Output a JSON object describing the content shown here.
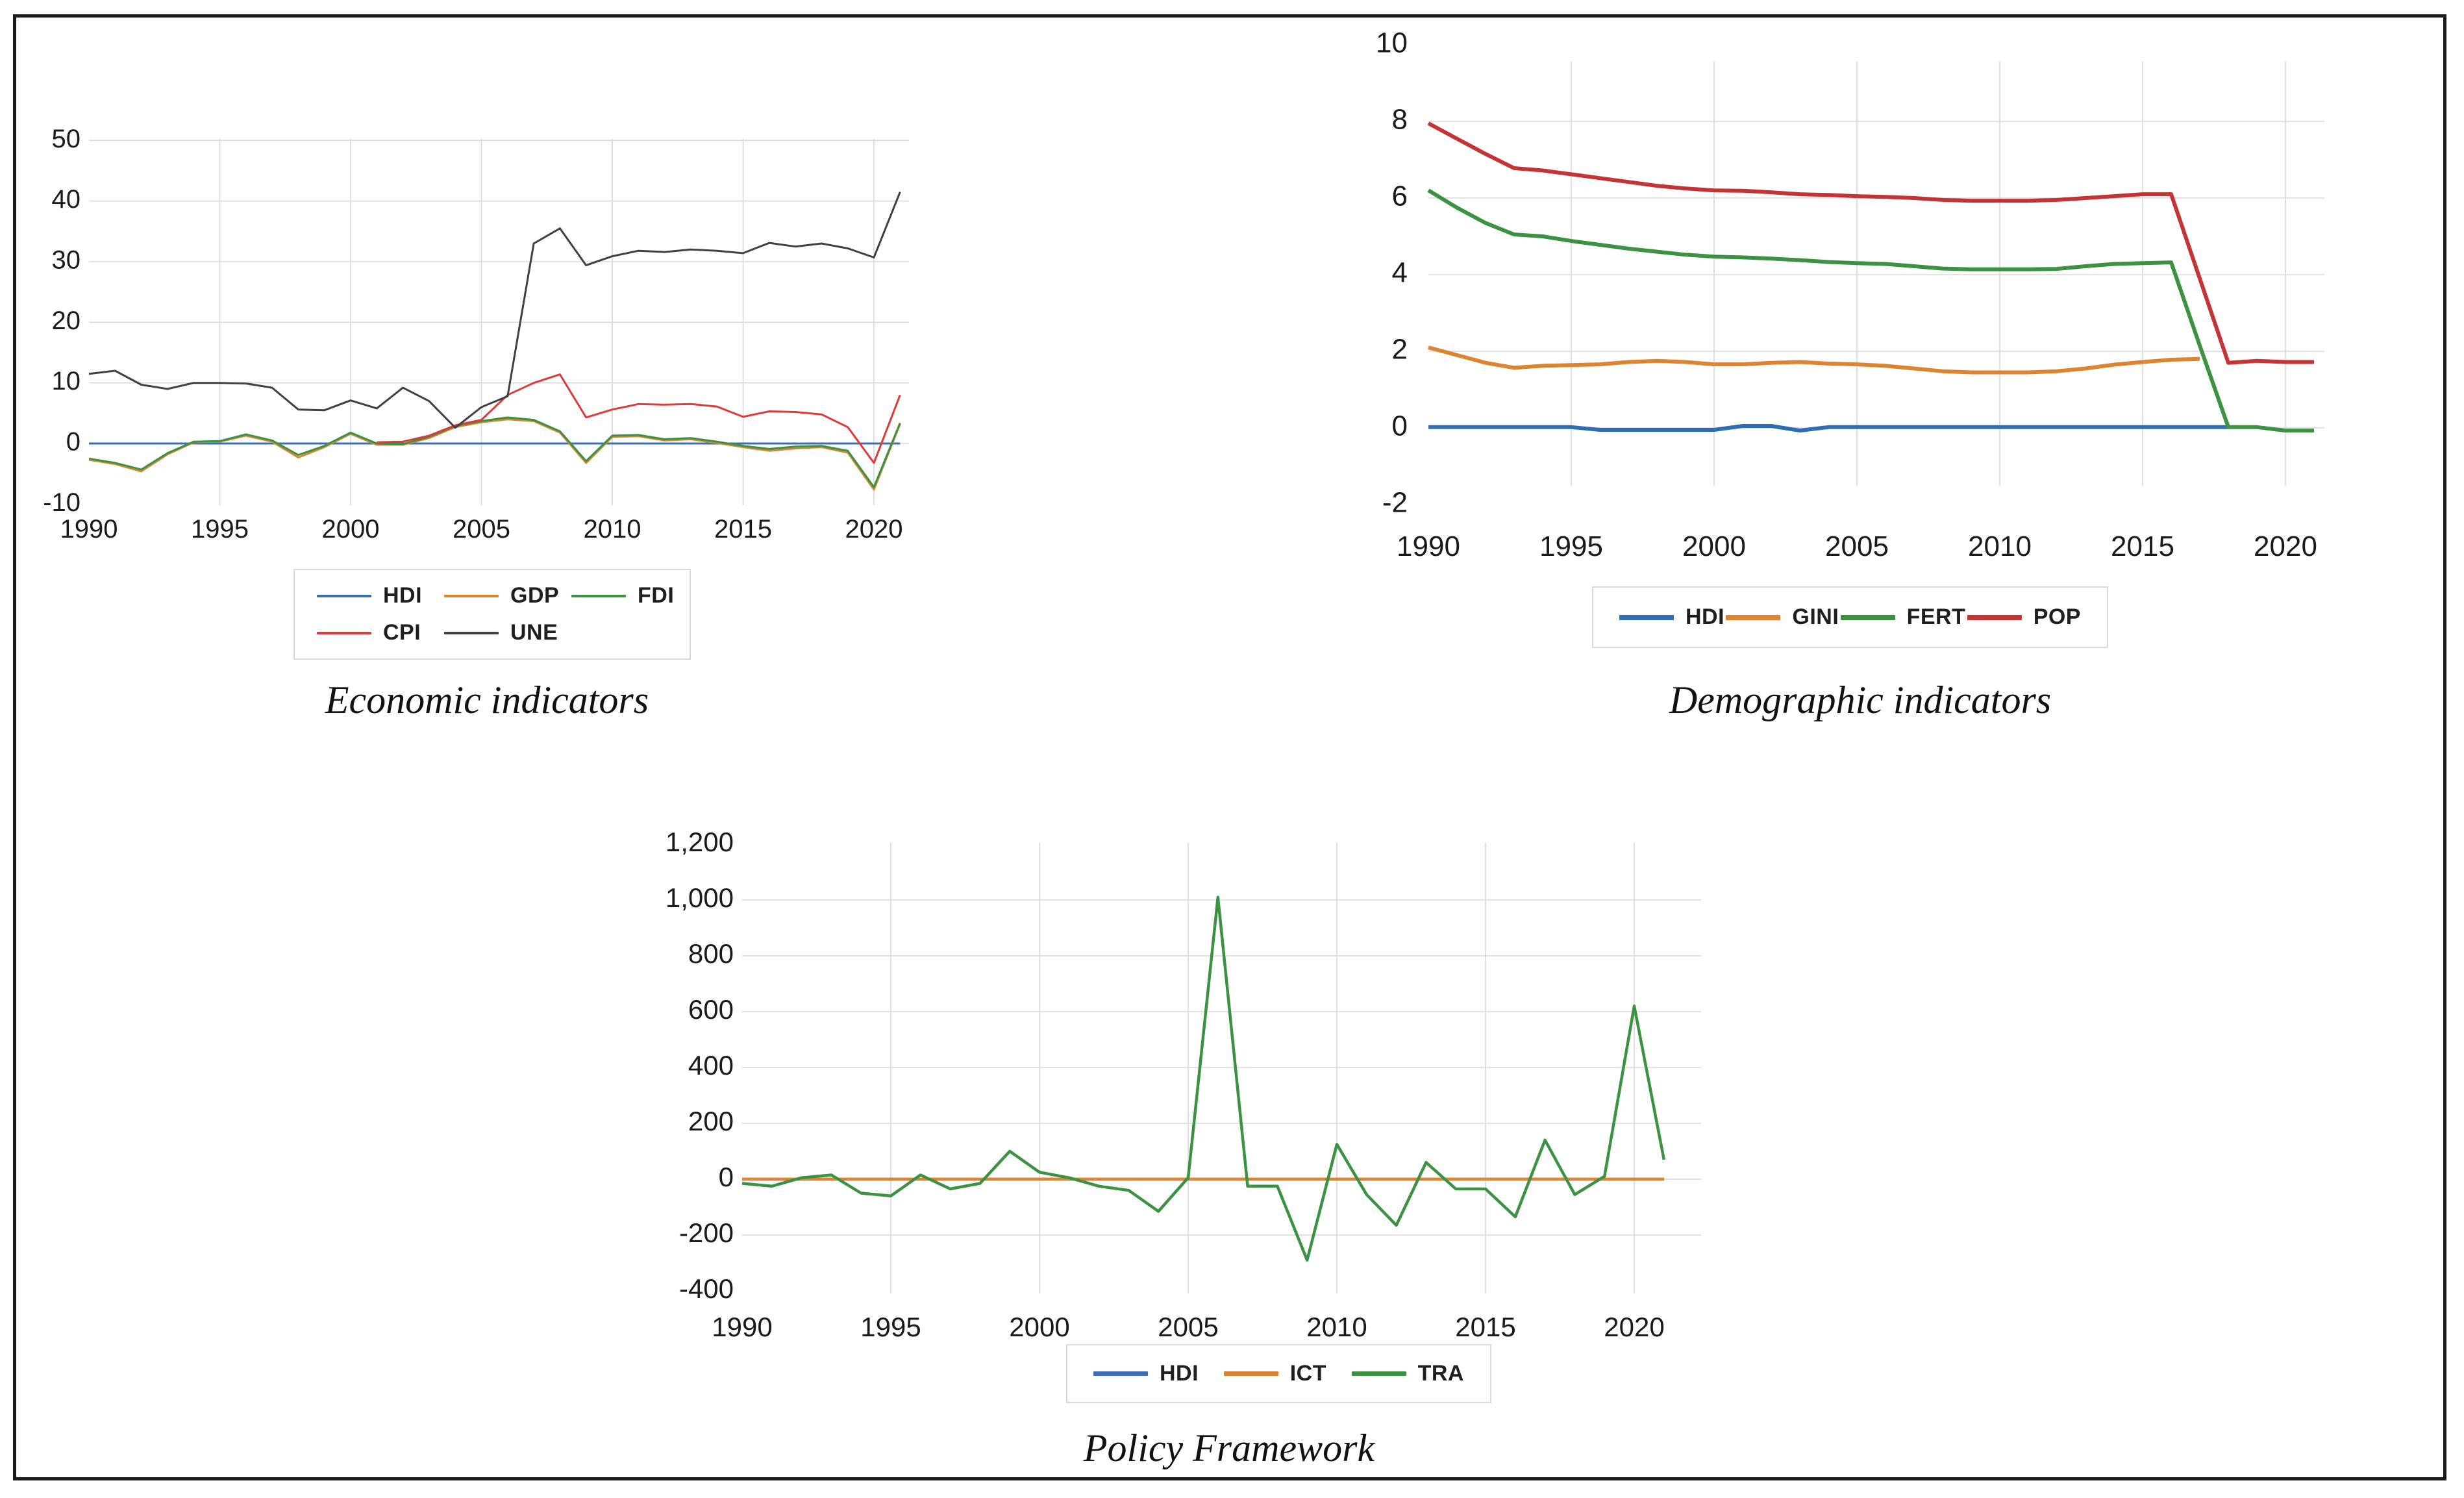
{
  "figure": {
    "background": "#ffffff",
    "frame_color": "#1b1b1b",
    "gridline_color": "#D9D9D9",
    "tick_text_color": "#1a1a1a"
  },
  "chart_data": [
    {
      "id": "economic",
      "type": "line",
      "title": "Economic indicators",
      "xlabel": "",
      "ylabel": "",
      "xlim": [
        1990,
        2021.5
      ],
      "ylim": [
        -10,
        50
      ],
      "grid": true,
      "legend_position": "bottom",
      "x_ticks": [
        {
          "label": "1990",
          "value": 1990
        },
        {
          "label": "1995",
          "value": 1995
        },
        {
          "label": "2000",
          "value": 2000
        },
        {
          "label": "2005",
          "value": 2005
        },
        {
          "label": "2010",
          "value": 2010
        },
        {
          "label": "2015",
          "value": 2015
        },
        {
          "label": "2020",
          "value": 2020
        }
      ],
      "y_ticks": [
        {
          "label": "50",
          "value": 50
        },
        {
          "label": "40",
          "value": 40
        },
        {
          "label": "30",
          "value": 30
        },
        {
          "label": "20",
          "value": 20
        },
        {
          "label": "10",
          "value": 10
        },
        {
          "label": "0",
          "value": 0
        },
        {
          "label": "-10",
          "value": -10
        }
      ],
      "grid_x": [
        1995,
        2000,
        2005,
        2010,
        2015,
        2020
      ],
      "grid_y": [
        0,
        10,
        20,
        30,
        40,
        50
      ],
      "years": [
        1990,
        1991,
        1992,
        1993,
        1994,
        1995,
        1996,
        1997,
        1998,
        1999,
        2000,
        2001,
        2002,
        2003,
        2004,
        2005,
        2006,
        2007,
        2008,
        2009,
        2010,
        2011,
        2012,
        2013,
        2014,
        2015,
        2016,
        2017,
        2018,
        2019,
        2020,
        2021
      ],
      "series": [
        {
          "name": "HDI",
          "color": "#3D6EB5",
          "values": [
            0,
            0,
            0,
            0,
            0,
            0,
            0,
            0,
            0,
            0,
            0,
            0,
            0,
            0,
            0,
            0,
            0,
            0,
            0,
            0,
            0,
            0,
            0,
            0,
            0,
            0,
            0,
            0,
            0,
            0,
            0,
            0
          ]
        },
        {
          "name": "GDP",
          "color": "#DD8433",
          "values": [
            -2.7,
            -3.4,
            -4.6,
            -1.8,
            0.2,
            0.3,
            1.3,
            0.3,
            -2.3,
            -0.6,
            1.6,
            -0.2,
            -0.2,
            0.9,
            2.7,
            3.5,
            4.0,
            3.7,
            1.8,
            -3.2,
            1.1,
            1.2,
            0.5,
            0.7,
            0.1,
            -0.6,
            -1.2,
            -0.8,
            -0.6,
            -1.5,
            -7.6,
            3.2
          ]
        },
        {
          "name": "FDI",
          "color": "#3D9142",
          "values": [
            -2.5,
            -3.2,
            -4.3,
            -1.6,
            0.3,
            0.4,
            1.5,
            0.5,
            -1.9,
            -0.4,
            1.8,
            0.0,
            -0.1,
            1.1,
            2.9,
            3.7,
            4.3,
            3.9,
            2.0,
            -2.9,
            1.3,
            1.4,
            0.7,
            0.9,
            0.3,
            -0.4,
            -0.9,
            -0.5,
            -0.4,
            -1.2,
            -7.2,
            3.4
          ]
        },
        {
          "name": "CPI",
          "color": "#DE393B",
          "values": [
            null,
            null,
            null,
            null,
            null,
            null,
            null,
            null,
            null,
            null,
            null,
            0.2,
            0.3,
            1.3,
            3.0,
            3.9,
            8.0,
            10.0,
            11.4,
            4.3,
            5.6,
            6.5,
            6.4,
            6.5,
            6.1,
            4.4,
            5.3,
            5.2,
            4.8,
            2.7,
            -3.2,
            8.0
          ]
        },
        {
          "name": "UNE",
          "color": "#404040",
          "values": [
            11.5,
            12.0,
            9.7,
            9.0,
            10.0,
            10.0,
            9.9,
            9.2,
            5.6,
            5.5,
            7.1,
            5.8,
            9.2,
            7.0,
            2.6,
            6.0,
            7.8,
            33.0,
            35.5,
            29.4,
            30.9,
            31.8,
            31.6,
            32.0,
            31.8,
            31.4,
            33.1,
            32.5,
            33.0,
            32.2,
            30.7,
            41.5
          ]
        }
      ],
      "legend_labels": [
        "HDI",
        "GDP",
        "FDI",
        "CPI",
        "UNE"
      ]
    },
    {
      "id": "demographic",
      "type": "line",
      "title": "Demographic indicators",
      "xlabel": "",
      "ylabel": "",
      "xlim": [
        1990,
        2021.5
      ],
      "ylim": [
        -2,
        10
      ],
      "grid": true,
      "legend_position": "bottom",
      "x_ticks": [
        {
          "label": "1990",
          "value": 1990
        },
        {
          "label": "1995",
          "value": 1995
        },
        {
          "label": "2000",
          "value": 2000
        },
        {
          "label": "2005",
          "value": 2005
        },
        {
          "label": "2010",
          "value": 2010
        },
        {
          "label": "2015",
          "value": 2015
        },
        {
          "label": "2020",
          "value": 2020
        }
      ],
      "y_ticks": [
        {
          "label": "10",
          "value": 10
        },
        {
          "label": "8",
          "value": 8
        },
        {
          "label": "6",
          "value": 6
        },
        {
          "label": "4",
          "value": 4
        },
        {
          "label": "2",
          "value": 2
        },
        {
          "label": "0",
          "value": 0
        },
        {
          "label": "-2",
          "value": -2
        }
      ],
      "grid_x": [
        1995,
        2000,
        2005,
        2010,
        2015,
        2020
      ],
      "grid_y": [
        0,
        2,
        4,
        6,
        8
      ],
      "years": [
        1990,
        1991,
        1992,
        1993,
        1994,
        1995,
        1996,
        1997,
        1998,
        1999,
        2000,
        2001,
        2002,
        2003,
        2004,
        2005,
        2006,
        2007,
        2008,
        2009,
        2010,
        2011,
        2012,
        2013,
        2014,
        2015,
        2016,
        2017,
        2018,
        2019,
        2020,
        2021
      ],
      "series": [
        {
          "name": "HDI",
          "color": "#2E6DB4",
          "values": [
            0.02,
            0.02,
            0.02,
            0.02,
            0.02,
            0.02,
            -0.05,
            -0.05,
            -0.05,
            -0.05,
            -0.05,
            0.05,
            0.05,
            -0.07,
            0.02,
            0.02,
            0.02,
            0.02,
            0.02,
            0.02,
            0.02,
            0.02,
            0.02,
            0.02,
            0.02,
            0.02,
            0.02,
            0.02,
            0.02,
            null,
            null,
            null
          ]
        },
        {
          "name": "GINI",
          "color": "#DD8433",
          "values": [
            2.1,
            1.9,
            1.7,
            1.57,
            1.62,
            1.64,
            1.66,
            1.72,
            1.75,
            1.72,
            1.66,
            1.66,
            1.7,
            1.72,
            1.68,
            1.66,
            1.62,
            1.55,
            1.48,
            1.45,
            1.45,
            1.45,
            1.48,
            1.55,
            1.65,
            1.72,
            1.78,
            1.8,
            null,
            null,
            null,
            null
          ]
        },
        {
          "name": "FERT",
          "color": "#3D9142",
          "values": [
            6.2,
            5.75,
            5.35,
            5.05,
            5.0,
            4.88,
            4.78,
            4.68,
            4.6,
            4.52,
            4.47,
            4.45,
            4.42,
            4.38,
            4.33,
            4.3,
            4.28,
            4.22,
            4.16,
            4.14,
            4.14,
            4.14,
            4.15,
            4.22,
            4.28,
            4.3,
            4.32,
            2.15,
            0.02,
            0.02,
            -0.07,
            -0.07
          ]
        },
        {
          "name": "POP",
          "color": "#C43434",
          "values": [
            7.95,
            7.55,
            7.15,
            6.78,
            6.72,
            6.62,
            6.52,
            6.42,
            6.32,
            6.25,
            6.2,
            6.19,
            6.15,
            6.1,
            6.08,
            6.05,
            6.03,
            6.0,
            5.95,
            5.93,
            5.93,
            5.93,
            5.95,
            6.0,
            6.05,
            6.1,
            6.1,
            3.9,
            1.7,
            1.75,
            1.72,
            1.72
          ]
        }
      ],
      "legend_labels": [
        "HDI",
        "GINI",
        "FERT",
        "POP"
      ]
    },
    {
      "id": "policy",
      "type": "line",
      "title": "Policy Framework",
      "xlabel": "",
      "ylabel": "",
      "xlim": [
        1990,
        2021.5
      ],
      "ylim": [
        -400,
        1200
      ],
      "grid": true,
      "legend_position": "bottom",
      "x_ticks": [
        {
          "label": "1990",
          "value": 1990
        },
        {
          "label": "1995",
          "value": 1995
        },
        {
          "label": "2000",
          "value": 2000
        },
        {
          "label": "2005",
          "value": 2005
        },
        {
          "label": "2010",
          "value": 2010
        },
        {
          "label": "2015",
          "value": 2015
        },
        {
          "label": "2020",
          "value": 2020
        }
      ],
      "y_ticks": [
        {
          "label": "1,200",
          "value": 1200
        },
        {
          "label": "1,000",
          "value": 1000
        },
        {
          "label": "800",
          "value": 800
        },
        {
          "label": "600",
          "value": 600
        },
        {
          "label": "400",
          "value": 400
        },
        {
          "label": "200",
          "value": 200
        },
        {
          "label": "0",
          "value": 0
        },
        {
          "label": "-200",
          "value": -200
        },
        {
          "label": "-400",
          "value": -400
        }
      ],
      "grid_x": [
        1995,
        2000,
        2005,
        2010,
        2015,
        2020
      ],
      "grid_y": [
        -200,
        0,
        200,
        400,
        600,
        800,
        1000
      ],
      "years": [
        1990,
        1991,
        1992,
        1993,
        1994,
        1995,
        1996,
        1997,
        1998,
        1999,
        2000,
        2001,
        2002,
        2003,
        2004,
        2005,
        2006,
        2007,
        2008,
        2009,
        2010,
        2011,
        2012,
        2013,
        2014,
        2015,
        2016,
        2017,
        2018,
        2019,
        2020,
        2021
      ],
      "series": [
        {
          "name": "HDI",
          "color": "#3D6EB5",
          "values": [
            0,
            0,
            0,
            0,
            0,
            0,
            0,
            0,
            0,
            0,
            0,
            0,
            0,
            0,
            0,
            0,
            0,
            0,
            0,
            0,
            0,
            0,
            0,
            0,
            0,
            0,
            0,
            0,
            0,
            0,
            0,
            0
          ]
        },
        {
          "name": "ICT",
          "color": "#DD8433",
          "values": [
            0,
            0,
            0,
            0,
            0,
            0,
            0,
            0,
            0,
            0,
            0,
            0,
            0,
            0,
            0,
            0,
            0,
            0,
            0,
            0,
            0,
            0,
            0,
            0,
            0,
            0,
            0,
            0,
            0,
            0,
            0,
            0
          ]
        },
        {
          "name": "TRA",
          "color": "#3D9142",
          "values": [
            -15,
            -25,
            5,
            15,
            -50,
            -60,
            15,
            -35,
            -15,
            100,
            25,
            5,
            -25,
            -40,
            -115,
            5,
            1010,
            -25,
            -25,
            -290,
            125,
            -55,
            -165,
            60,
            -35,
            -35,
            -135,
            140,
            -55,
            10,
            620,
            70
          ]
        }
      ],
      "legend_labels": [
        "HDI",
        "ICT",
        "TRA"
      ]
    }
  ]
}
